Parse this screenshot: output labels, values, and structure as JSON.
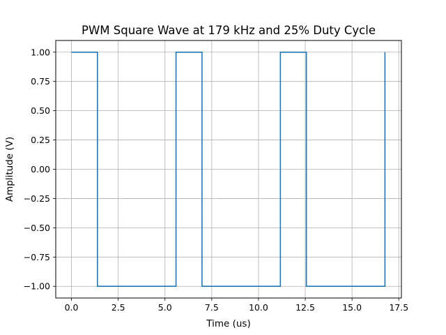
{
  "chart_data": {
    "type": "line",
    "title": "PWM Square Wave at 179 kHz and 25% Duty Cycle",
    "xlabel": "Time (us)",
    "ylabel": "Amplitude (V)",
    "xlim": [
      -0.84,
      17.64
    ],
    "ylim": [
      -1.1,
      1.1
    ],
    "grid": true,
    "x_ticks": [
      0.0,
      2.5,
      5.0,
      7.5,
      10.0,
      12.5,
      15.0,
      17.5
    ],
    "x_tick_labels": [
      "0.0",
      "2.5",
      "5.0",
      "7.5",
      "10.0",
      "12.5",
      "15.0",
      "17.5"
    ],
    "y_ticks": [
      1.0,
      0.75,
      0.5,
      0.25,
      0.0,
      -0.25,
      -0.5,
      -0.75,
      -1.0
    ],
    "y_tick_labels": [
      "1.00",
      "0.75",
      "0.50",
      "0.25",
      "0.00",
      "−0.25",
      "−0.50",
      "−0.75",
      "−1.00"
    ],
    "series": [
      {
        "color": "#1f77b4",
        "x": [
          0.0,
          1.39,
          1.39,
          5.59,
          5.59,
          6.98,
          6.98,
          11.17,
          11.17,
          12.56,
          12.56,
          16.76,
          16.76
        ],
        "y": [
          1,
          1,
          -1,
          -1,
          1,
          1,
          -1,
          -1,
          1,
          1,
          -1,
          -1,
          1
        ]
      }
    ]
  }
}
